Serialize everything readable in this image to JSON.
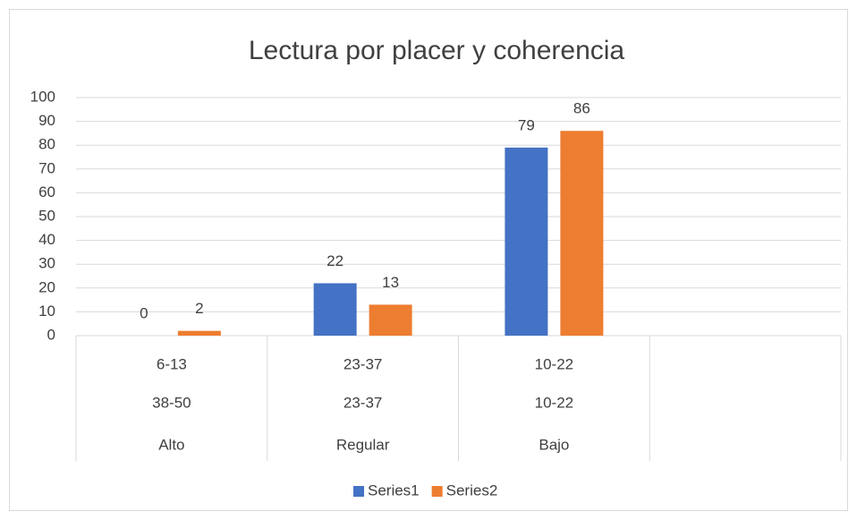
{
  "chart_data": {
    "type": "bar",
    "title": "Lectura por placer y coherencia",
    "categories": [
      [
        "6-13",
        "38-50",
        "Alto"
      ],
      [
        "23-37",
        "23-37",
        "Regular"
      ],
      [
        "10-22",
        "10-22",
        "Bajo"
      ],
      null
    ],
    "series": [
      {
        "name": "Series1",
        "color": "#4472c4",
        "values": [
          0,
          22,
          79,
          null
        ]
      },
      {
        "name": "Series2",
        "color": "#ed7d31",
        "values": [
          2,
          13,
          86,
          null
        ]
      }
    ],
    "ylim": [
      0,
      100
    ],
    "yticks": [
      0,
      10,
      20,
      30,
      40,
      50,
      60,
      70,
      80,
      90,
      100
    ],
    "grid": true,
    "legend": "bottom"
  }
}
